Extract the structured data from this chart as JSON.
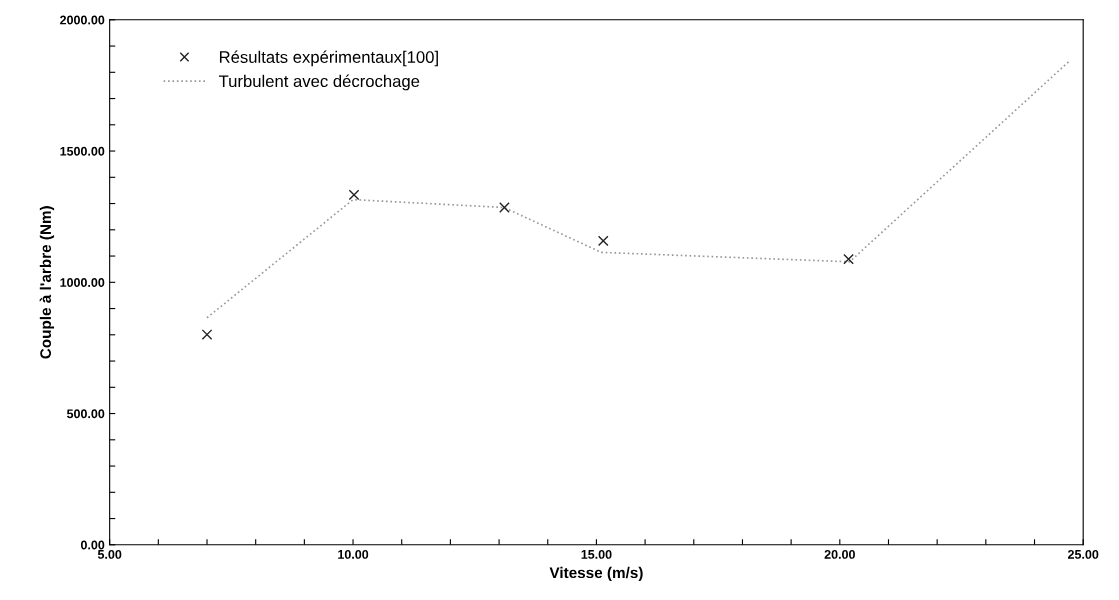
{
  "chart_data": {
    "type": "line",
    "xlabel": "Vitesse (m/s)",
    "ylabel": "Couple à l'arbre (Nm)",
    "series": [
      {
        "name": "Résultats expérimentaux[100]",
        "type": "scatter",
        "marker": "cross",
        "color": "#222222",
        "x": [
          7.0,
          10.02,
          13.11,
          15.14,
          20.18
        ],
        "values": [
          801,
          1333,
          1285,
          1158,
          1088
        ]
      },
      {
        "name": "Turbulent avec décrochage",
        "marker": "none",
        "line_style": "dotted",
        "color": "#999999",
        "x": [
          7.0,
          10.0,
          13.1,
          15.1,
          20.2,
          24.7
        ],
        "values": [
          865,
          1315,
          1285,
          1114,
          1078,
          1840
        ]
      }
    ],
    "xlim": [
      5,
      25
    ],
    "ylim": [
      0,
      2000
    ],
    "xticks": [
      {
        "value": 5,
        "label": "5.00"
      },
      {
        "value": 6,
        "label": null
      },
      {
        "value": 7,
        "label": null
      },
      {
        "value": 8,
        "label": null
      },
      {
        "value": 9,
        "label": null
      },
      {
        "value": 10,
        "label": "10.00"
      },
      {
        "value": 11,
        "label": null
      },
      {
        "value": 12,
        "label": null
      },
      {
        "value": 13,
        "label": null
      },
      {
        "value": 14,
        "label": null
      },
      {
        "value": 15,
        "label": "15.00"
      },
      {
        "value": 16,
        "label": null
      },
      {
        "value": 17,
        "label": null
      },
      {
        "value": 18,
        "label": null
      },
      {
        "value": 19,
        "label": null
      },
      {
        "value": 20,
        "label": "20.00"
      },
      {
        "value": 21,
        "label": null
      },
      {
        "value": 22,
        "label": null
      },
      {
        "value": 23,
        "label": null
      },
      {
        "value": 24,
        "label": null
      },
      {
        "value": 25,
        "label": "25.00"
      }
    ],
    "yticks": [
      {
        "value": 0,
        "label": "0.00"
      },
      {
        "value": 100,
        "label": null
      },
      {
        "value": 200,
        "label": null
      },
      {
        "value": 300,
        "label": null
      },
      {
        "value": 400,
        "label": null
      },
      {
        "value": 500,
        "label": "500.00"
      },
      {
        "value": 600,
        "label": null
      },
      {
        "value": 700,
        "label": null
      },
      {
        "value": 800,
        "label": null
      },
      {
        "value": 900,
        "label": null
      },
      {
        "value": 1000,
        "label": "1000.00"
      },
      {
        "value": 1100,
        "label": null
      },
      {
        "value": 1200,
        "label": null
      },
      {
        "value": 1300,
        "label": null
      },
      {
        "value": 1400,
        "label": null
      },
      {
        "value": 1500,
        "label": "1500.00"
      },
      {
        "value": 1600,
        "label": null
      },
      {
        "value": 1700,
        "label": null
      },
      {
        "value": 1800,
        "label": null
      },
      {
        "value": 1900,
        "label": null
      },
      {
        "value": 2000,
        "label": "2000.00"
      }
    ],
    "grid": false,
    "legend": "top left"
  }
}
